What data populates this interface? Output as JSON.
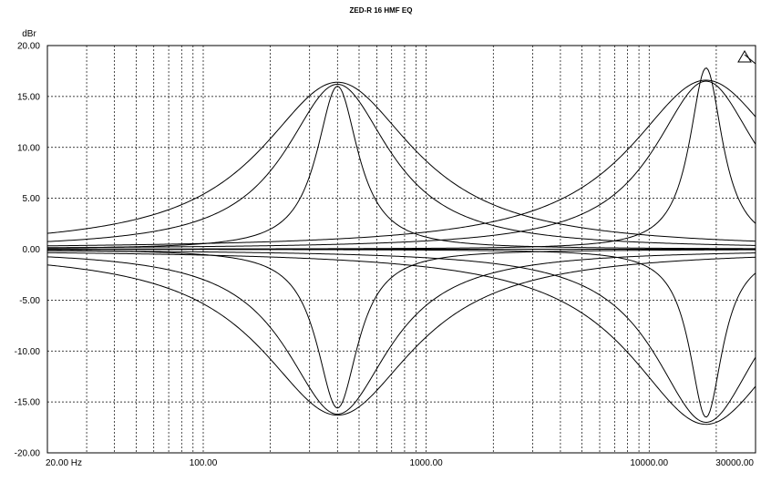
{
  "chart_data": {
    "type": "line",
    "title": "ZED-R 16 HMF EQ",
    "ylabel": "dBr",
    "xscale": "log",
    "xlim": [
      20,
      30000
    ],
    "ylim": [
      -20,
      20
    ],
    "grid": true,
    "y_ticks": [
      "20.00",
      "15.00",
      "10.00",
      "5.00",
      "0.00",
      "-5.00",
      "-10.00",
      "-15.00",
      "-20.00"
    ],
    "x_ticks": [
      {
        "value": 20,
        "label": "20.00 Hz"
      },
      {
        "value": 100,
        "label": "100.00"
      },
      {
        "value": 1000,
        "label": "1000.00"
      },
      {
        "value": 10000,
        "label": "10000.00"
      },
      {
        "value": 30000,
        "label": "30000.00"
      }
    ],
    "series": [
      {
        "center_hz": 400,
        "gain_db": 16.4,
        "width_oct": 2.8
      },
      {
        "center_hz": 400,
        "gain_db": 16.2,
        "width_oct": 1.9
      },
      {
        "center_hz": 400,
        "gain_db": 16.0,
        "width_oct": 0.75
      },
      {
        "center_hz": 400,
        "gain_db": -16.3,
        "width_oct": 2.8
      },
      {
        "center_hz": 400,
        "gain_db": -16.2,
        "width_oct": 1.9
      },
      {
        "center_hz": 400,
        "gain_db": -15.6,
        "width_oct": 0.75
      },
      {
        "center_hz": 18000,
        "gain_db": 16.6,
        "width_oct": 2.8
      },
      {
        "center_hz": 18000,
        "gain_db": 16.5,
        "width_oct": 1.9
      },
      {
        "center_hz": 18000,
        "gain_db": 17.8,
        "width_oct": 0.6
      },
      {
        "center_hz": 18000,
        "gain_db": -17.2,
        "width_oct": 2.8
      },
      {
        "center_hz": 18000,
        "gain_db": -17.0,
        "width_oct": 1.9
      },
      {
        "center_hz": 18000,
        "gain_db": -16.5,
        "width_oct": 0.6
      },
      {
        "center_hz": 400,
        "gain_db": 0.0,
        "width_oct": 1.0
      }
    ]
  }
}
